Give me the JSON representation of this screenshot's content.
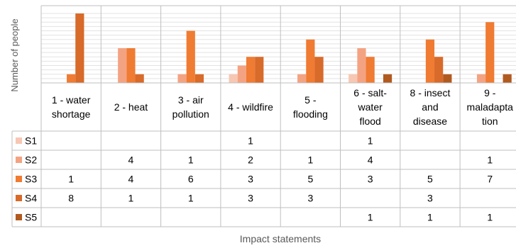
{
  "chart_data": {
    "type": "bar",
    "title": "",
    "xlabel": "Impact statements",
    "ylabel": "Number of people",
    "ylim": [
      0,
      8
    ],
    "grid": true,
    "legend": "table-left",
    "categories": [
      [
        "1 - water",
        "shortage"
      ],
      [
        "2 - heat"
      ],
      [
        "3 - air",
        "pollution"
      ],
      [
        "4 - wildfire"
      ],
      [
        "5 -",
        "flooding"
      ],
      [
        "6 - salt-",
        "water",
        "flood"
      ],
      [
        "8 - insect",
        "and",
        "disease"
      ],
      [
        "9 -",
        "maladapta",
        "tion"
      ]
    ],
    "series": [
      {
        "name": "S1",
        "color": "#f7c7b3",
        "values": [
          null,
          null,
          null,
          1,
          null,
          1,
          null,
          null
        ]
      },
      {
        "name": "S2",
        "color": "#f4a382",
        "values": [
          null,
          4,
          1,
          2,
          1,
          4,
          null,
          1
        ]
      },
      {
        "name": "S3",
        "color": "#f07b32",
        "values": [
          1,
          4,
          6,
          3,
          5,
          3,
          5,
          7
        ]
      },
      {
        "name": "S4",
        "color": "#d86a2a",
        "values": [
          8,
          1,
          1,
          3,
          3,
          null,
          3,
          null
        ]
      },
      {
        "name": "S5",
        "color": "#b15a20",
        "values": [
          null,
          null,
          null,
          null,
          null,
          1,
          1,
          1
        ]
      }
    ]
  }
}
